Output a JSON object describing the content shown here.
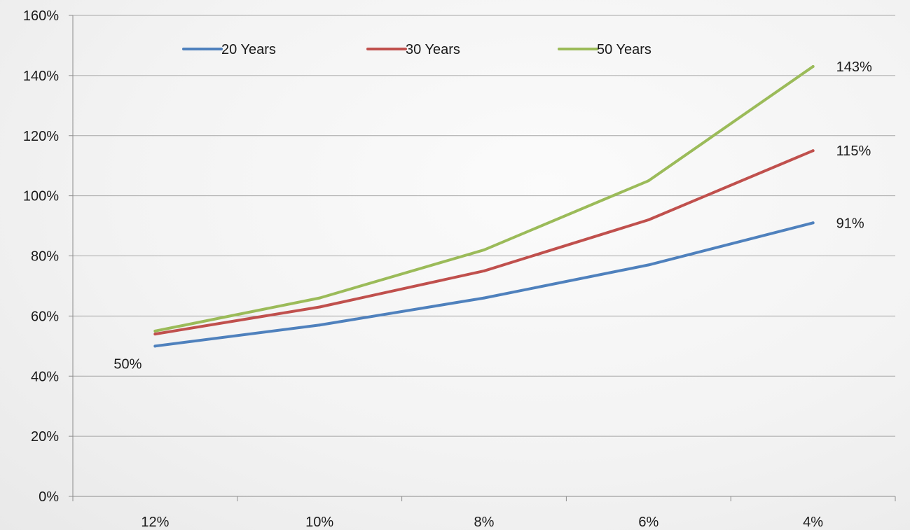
{
  "chart_data": {
    "type": "line",
    "title": "",
    "xlabel": "",
    "ylabel": "",
    "categories": [
      "12%",
      "10%",
      "8%",
      "6%",
      "4%"
    ],
    "y_ticks": [
      "0%",
      "20%",
      "40%",
      "60%",
      "80%",
      "100%",
      "120%",
      "140%",
      "160%"
    ],
    "ylim": [
      0,
      160
    ],
    "grid": "horizontal",
    "legend": "top",
    "series": [
      {
        "name": "20 Years",
        "color": "#4f81bd",
        "values": [
          50,
          57,
          66,
          77,
          91
        ]
      },
      {
        "name": "30 Years",
        "color": "#c0504d",
        "values": [
          54,
          63,
          75,
          92,
          115
        ]
      },
      {
        "name": "50 Years",
        "color": "#9bbb59",
        "values": [
          55,
          66,
          82,
          105,
          143
        ]
      }
    ],
    "data_labels": [
      {
        "series": 0,
        "index": 0,
        "text": "50%"
      },
      {
        "series": 0,
        "index": 4,
        "text": "91%"
      },
      {
        "series": 1,
        "index": 4,
        "text": "115%"
      },
      {
        "series": 2,
        "index": 4,
        "text": "143%"
      }
    ]
  }
}
